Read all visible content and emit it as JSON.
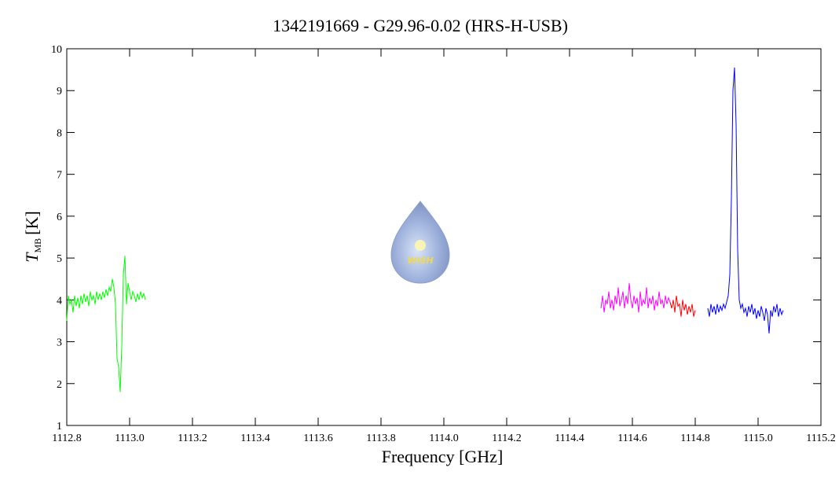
{
  "chart_data": {
    "type": "line",
    "title": "1342191669 - G29.96-0.02 (HRS-H-USB)",
    "xlabel": "Frequency [GHz]",
    "ylabel": {
      "symbol": "T",
      "subscript": "MB",
      "unit": "[K]"
    },
    "logo_text": "WISH",
    "xlim": [
      1112.8,
      1115.2
    ],
    "ylim": [
      1,
      10
    ],
    "xticks": [
      {
        "value": 1112.8,
        "label": "1112.8"
      },
      {
        "value": 1113.0,
        "label": "1113.0"
      },
      {
        "value": 1113.2,
        "label": "1113.2"
      },
      {
        "value": 1113.4,
        "label": "1113.4"
      },
      {
        "value": 1113.6,
        "label": "1113.6"
      },
      {
        "value": 1113.8,
        "label": "1113.8"
      },
      {
        "value": 1114.0,
        "label": "1114.0"
      },
      {
        "value": 1114.2,
        "label": "1114.2"
      },
      {
        "value": 1114.4,
        "label": "1114.4"
      },
      {
        "value": 1114.6,
        "label": "1114.6"
      },
      {
        "value": 1114.8,
        "label": "1114.8"
      },
      {
        "value": 1115.0,
        "label": "1115.0"
      },
      {
        "value": 1115.2,
        "label": "1115.2"
      }
    ],
    "yticks": [
      1,
      2,
      3,
      4,
      5,
      6,
      7,
      8,
      9,
      10
    ],
    "series": [
      {
        "color": "#00ff00",
        "x": [
          1112.8,
          1112.805,
          1112.81,
          1112.815,
          1112.82,
          1112.825,
          1112.83,
          1112.835,
          1112.84,
          1112.845,
          1112.85,
          1112.855,
          1112.86,
          1112.865,
          1112.87,
          1112.875,
          1112.88,
          1112.885,
          1112.89,
          1112.895,
          1112.9,
          1112.905,
          1112.91,
          1112.915,
          1112.92,
          1112.925,
          1112.93,
          1112.935,
          1112.94,
          1112.945,
          1112.95,
          1112.955,
          1112.96,
          1112.965,
          1112.97,
          1112.975,
          1112.98,
          1112.985,
          1112.99,
          1112.995,
          1113.0,
          1113.005,
          1113.01,
          1113.015,
          1113.02,
          1113.025,
          1113.03,
          1113.035,
          1113.04,
          1113.045,
          1113.05
        ],
        "values": [
          3.5,
          4.1,
          3.9,
          4.0,
          3.7,
          4.1,
          3.85,
          4.05,
          3.8,
          4.1,
          3.9,
          4.15,
          3.95,
          4.1,
          3.85,
          4.2,
          4.0,
          4.1,
          3.9,
          4.2,
          4.0,
          4.15,
          4.0,
          4.2,
          4.05,
          4.25,
          4.1,
          4.3,
          4.2,
          4.5,
          4.3,
          3.9,
          2.6,
          2.4,
          1.8,
          2.9,
          4.6,
          5.05,
          3.9,
          4.4,
          4.2,
          4.0,
          4.2,
          4.1,
          3.95,
          4.15,
          4.0,
          4.2,
          4.05,
          4.15,
          4.0
        ]
      },
      {
        "color": "#ff00ff",
        "x": [
          1114.5,
          1114.505,
          1114.51,
          1114.515,
          1114.52,
          1114.525,
          1114.53,
          1114.535,
          1114.54,
          1114.545,
          1114.55,
          1114.555,
          1114.56,
          1114.565,
          1114.57,
          1114.575,
          1114.58,
          1114.585,
          1114.59,
          1114.595,
          1114.6,
          1114.605,
          1114.61,
          1114.615,
          1114.62,
          1114.625,
          1114.63,
          1114.635,
          1114.64,
          1114.645,
          1114.65,
          1114.655,
          1114.66,
          1114.665,
          1114.67,
          1114.675,
          1114.68,
          1114.685,
          1114.69,
          1114.695,
          1114.7,
          1114.705,
          1114.71,
          1114.715,
          1114.72
        ],
        "values": [
          3.8,
          4.1,
          3.7,
          4.0,
          3.9,
          4.2,
          3.8,
          4.0,
          3.75,
          4.1,
          3.9,
          4.3,
          3.85,
          4.0,
          4.2,
          3.8,
          4.1,
          3.9,
          4.4,
          4.0,
          3.8,
          4.1,
          3.9,
          4.05,
          3.7,
          4.2,
          3.85,
          4.0,
          3.9,
          4.3,
          3.8,
          4.05,
          3.9,
          4.1,
          3.75,
          4.0,
          3.85,
          4.2,
          3.9,
          4.0,
          3.8,
          4.1,
          3.9,
          4.05,
          3.95
        ]
      },
      {
        "color": "#ff0000",
        "x": [
          1114.72,
          1114.725,
          1114.73,
          1114.735,
          1114.74,
          1114.745,
          1114.75,
          1114.755,
          1114.76,
          1114.765,
          1114.77,
          1114.775,
          1114.78,
          1114.785,
          1114.79,
          1114.795,
          1114.8
        ],
        "values": [
          3.95,
          3.8,
          4.0,
          3.7,
          4.1,
          3.85,
          3.9,
          3.6,
          4.0,
          3.75,
          3.9,
          3.65,
          3.85,
          3.7,
          3.9,
          3.6,
          3.75
        ]
      },
      {
        "color": "#0000ff",
        "x": [
          1114.84,
          1114.845,
          1114.85,
          1114.855,
          1114.86,
          1114.865,
          1114.87,
          1114.875,
          1114.88,
          1114.885,
          1114.89,
          1114.895,
          1114.9,
          1114.905,
          1114.91,
          1114.915,
          1114.92,
          1114.925,
          1114.93,
          1114.935,
          1114.94,
          1114.945,
          1114.95,
          1114.955,
          1114.96,
          1114.965,
          1114.97,
          1114.975,
          1114.98,
          1114.985,
          1114.99,
          1114.995,
          1115.0,
          1115.005,
          1115.01,
          1115.015,
          1115.02,
          1115.025,
          1115.03,
          1115.035,
          1115.04,
          1115.045,
          1115.05,
          1115.055,
          1115.06,
          1115.065,
          1115.07,
          1115.075,
          1115.08
        ],
        "values": [
          3.8,
          3.6,
          3.9,
          3.7,
          3.85,
          3.65,
          3.9,
          3.7,
          3.85,
          3.75,
          3.9,
          3.8,
          3.95,
          4.1,
          4.6,
          6.4,
          9.0,
          9.55,
          8.2,
          5.2,
          4.0,
          3.8,
          3.9,
          3.7,
          3.8,
          3.6,
          3.85,
          3.7,
          3.9,
          3.65,
          3.8,
          3.55,
          3.75,
          3.6,
          3.85,
          3.7,
          3.5,
          3.8,
          3.65,
          3.2,
          3.75,
          3.6,
          3.85,
          3.7,
          3.9,
          3.6,
          3.8,
          3.65,
          3.75
        ]
      }
    ]
  }
}
